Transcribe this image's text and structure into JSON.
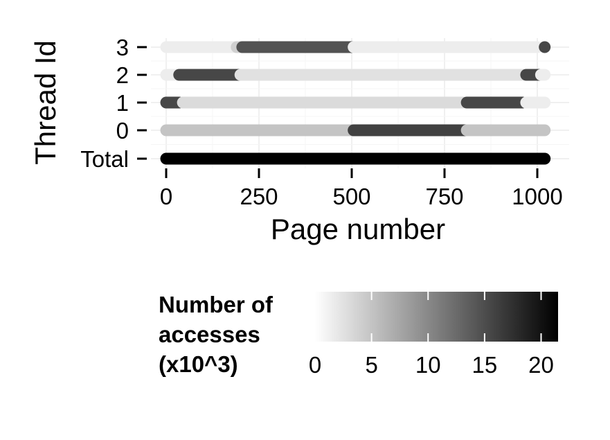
{
  "chart_data": {
    "type": "scatter",
    "xlabel": "Page number",
    "ylabel": "Thread Id",
    "xlim": [
      -10,
      1045
    ],
    "x_ticks": [
      0,
      250,
      500,
      750,
      1000
    ],
    "categories": [
      "Total",
      "0",
      "1",
      "2",
      "3"
    ],
    "grid": true,
    "legend": {
      "title_lines": [
        "Number of",
        "accesses",
        "(x10^3)"
      ],
      "ticks": [
        0,
        5,
        10,
        15,
        20
      ],
      "range": [
        0,
        21.5
      ],
      "placement": "bottom"
    },
    "series": [
      {
        "category": "3",
        "segments": [
          {
            "x_start": 0,
            "x_end": 190,
            "accesses": 1.5
          },
          {
            "x_start": 190,
            "x_end": 205,
            "accesses": 4
          },
          {
            "x_start": 205,
            "x_end": 505,
            "accesses": 14.5
          },
          {
            "x_start": 505,
            "x_end": 1000,
            "accesses": 1.5
          },
          {
            "x_start": 1020,
            "x_end": 1020,
            "accesses": 15.5
          }
        ]
      },
      {
        "category": "2",
        "segments": [
          {
            "x_start": 0,
            "x_end": 25,
            "accesses": 1.5
          },
          {
            "x_start": 35,
            "x_end": 200,
            "accesses": 15.5
          },
          {
            "x_start": 200,
            "x_end": 960,
            "accesses": 2.5
          },
          {
            "x_start": 970,
            "x_end": 1005,
            "accesses": 15.5
          },
          {
            "x_start": 1010,
            "x_end": 1020,
            "accesses": 1.5
          }
        ]
      },
      {
        "category": "1",
        "segments": [
          {
            "x_start": 0,
            "x_end": 35,
            "accesses": 15.5
          },
          {
            "x_start": 45,
            "x_end": 800,
            "accesses": 3
          },
          {
            "x_start": 810,
            "x_end": 960,
            "accesses": 15.5
          },
          {
            "x_start": 970,
            "x_end": 1020,
            "accesses": 1.5
          }
        ]
      },
      {
        "category": "0",
        "segments": [
          {
            "x_start": 0,
            "x_end": 500,
            "accesses": 5
          },
          {
            "x_start": 505,
            "x_end": 805,
            "accesses": 16
          },
          {
            "x_start": 810,
            "x_end": 1020,
            "accesses": 5
          }
        ]
      },
      {
        "category": "Total",
        "segments": [
          {
            "x_start": 0,
            "x_end": 1020,
            "accesses": 21.5
          }
        ]
      }
    ]
  }
}
